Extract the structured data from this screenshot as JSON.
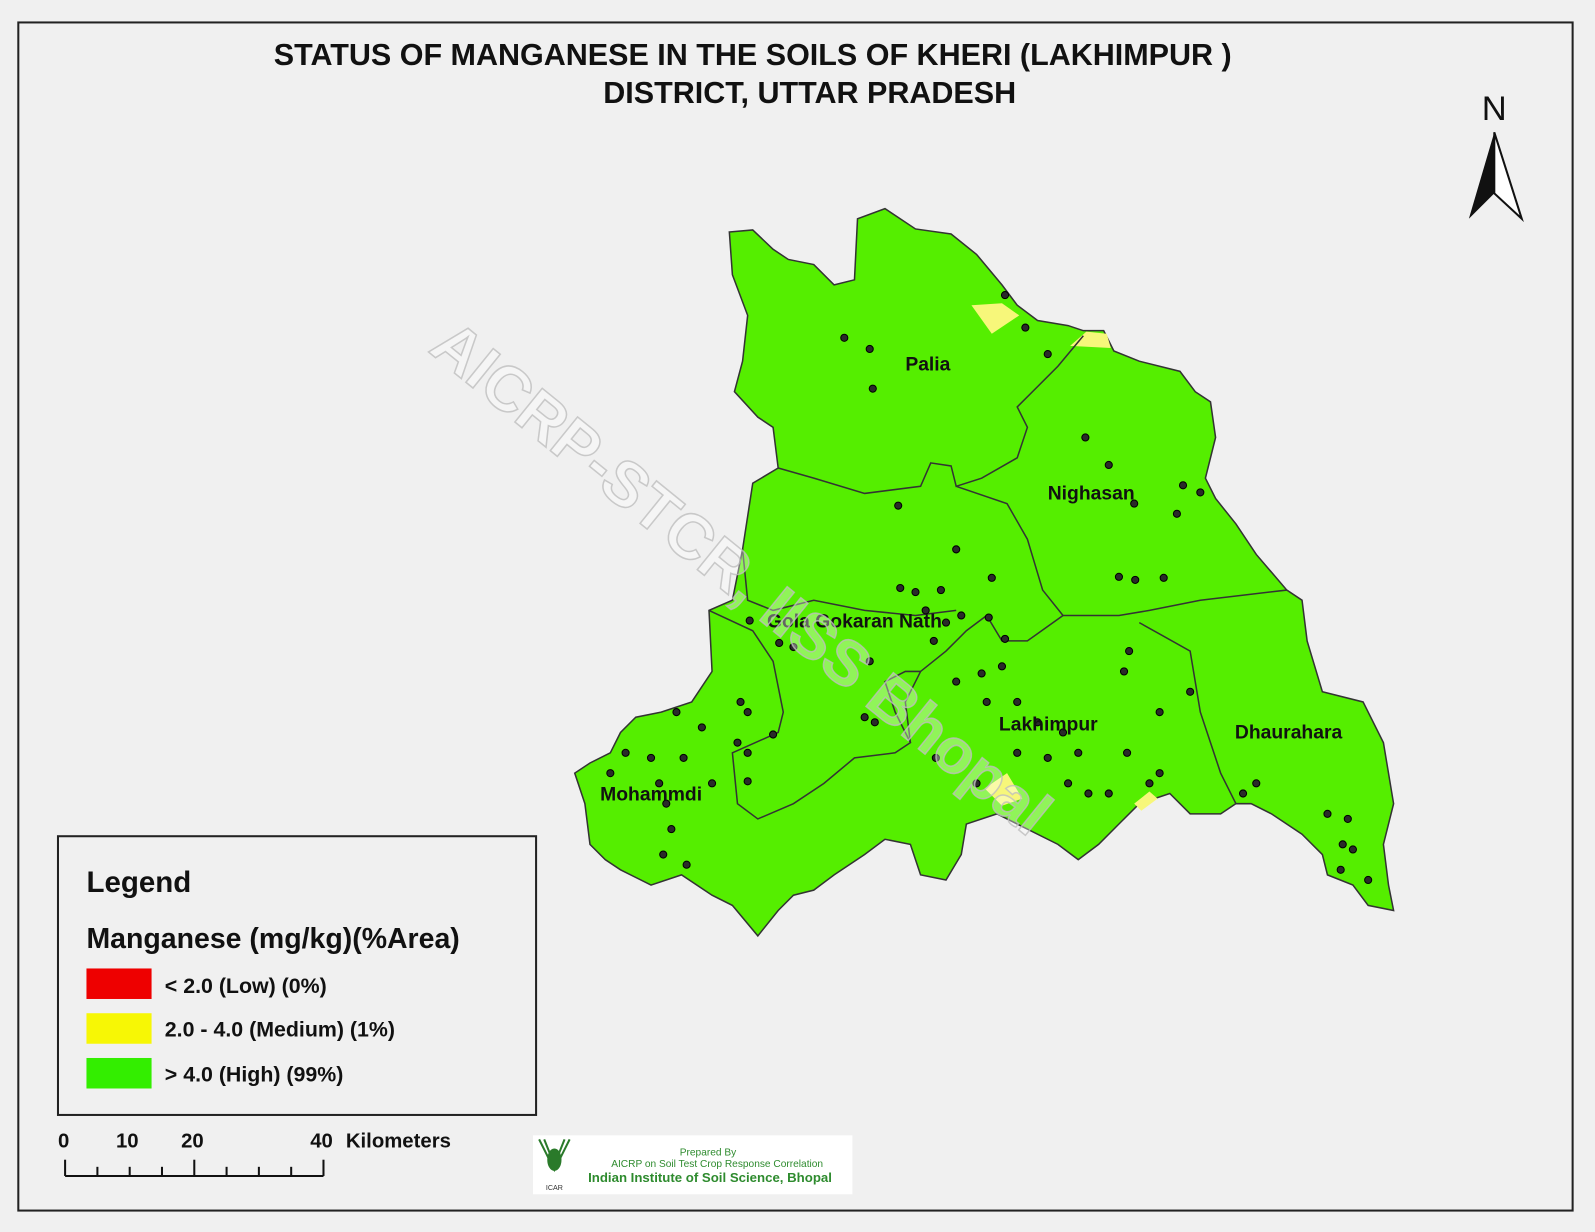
{
  "title": {
    "line1": "STATUS OF  MANGANESE  IN THE  SOILS OF KHERI (LAKHIMPUR )",
    "line2": "DISTRICT, UTTAR PRADESH"
  },
  "north_arrow": {
    "label": "N",
    "icon": "north-arrow-icon"
  },
  "watermark": "AICRP-STCR, IISS Bhopal",
  "blocks": [
    {
      "name": "Palia"
    },
    {
      "name": "Nighasan"
    },
    {
      "name": "Gola Gokaran Nath"
    },
    {
      "name": "Lakhimpur"
    },
    {
      "name": "Dhaurahara"
    },
    {
      "name": "Mohammdi"
    }
  ],
  "legend": {
    "heading": "Legend",
    "subtitle": "Manganese (mg/kg)(%Area)",
    "classes": [
      {
        "label": "<  2.0 (Low) (0%)",
        "color": "#ee0000",
        "percent_area": 0
      },
      {
        "label": "2.0 - 4.0 (Medium) (1%)",
        "color": "#f7f705",
        "percent_area": 1
      },
      {
        "label": "> 4.0  (High) (99%)",
        "color": "#33ee00",
        "percent_area": 99
      }
    ]
  },
  "colors": {
    "high": "#55ee00",
    "medium": "#f7f77a",
    "sample_point": "#2a2a2a",
    "background": "#f0f0f0"
  },
  "scale_bar": {
    "ticks": [
      "0",
      "10",
      "20",
      "40"
    ],
    "unit": "Kilometers"
  },
  "credit": {
    "line1": "Prepared By",
    "line2": "AICRP on Soil Test Crop Response Correlation",
    "line3": "Indian Institute of Soil Science, Bhopal",
    "logo_text": "ICAR"
  }
}
